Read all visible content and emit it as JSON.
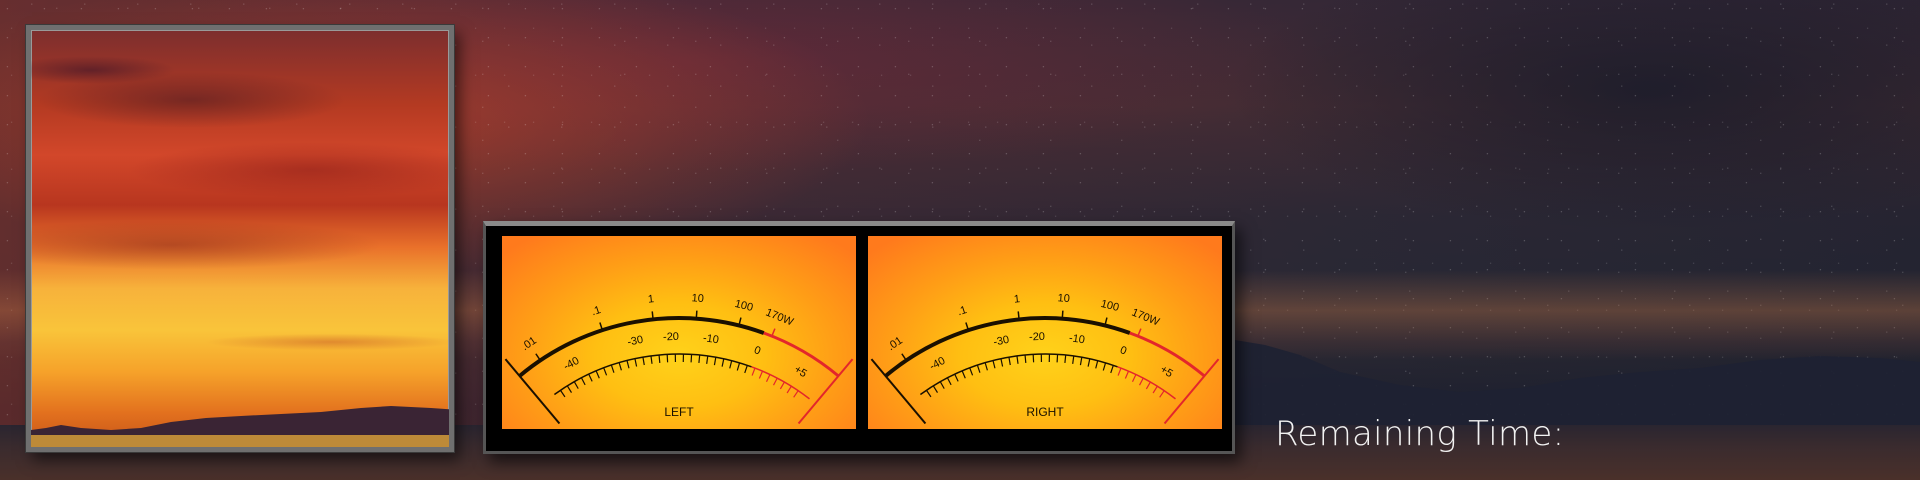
{
  "album_art": {
    "description_icon": "sunset-album-art"
  },
  "meters": [
    {
      "channel": "LEFT",
      "scale_labels": [
        ".01",
        ".1",
        "1",
        "10",
        "100",
        "170W"
      ],
      "db_labels": [
        "-40",
        "-30",
        "-20",
        "-10",
        "0",
        "+5"
      ]
    },
    {
      "channel": "RIGHT",
      "scale_labels": [
        ".01",
        ".1",
        "1",
        "10",
        "100",
        "170W"
      ],
      "db_labels": [
        "-40",
        "-30",
        "-20",
        "-10",
        "0",
        "+5"
      ]
    }
  ],
  "colors": {
    "meter_face": "#ffbf12",
    "meter_red": "#e3262b",
    "panel": "#000000"
  },
  "status": {
    "remaining_label": "Remaining Time:"
  }
}
